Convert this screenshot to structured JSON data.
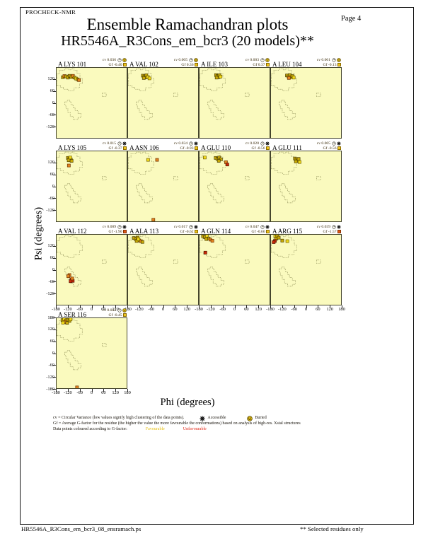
{
  "page": {
    "app": "PROCHECK-NMR",
    "page_label": "Page  4",
    "title": "Ensemble Ramachandran plots",
    "subtitle": "HR5546A_R3Cons_em_bcr3 (20 models)**",
    "footer_left": "HR5546A_R3Cons_em_bcr3_08_ensramach.ps",
    "footer_right": "** Selected residues only"
  },
  "axes": {
    "x_label": "Phi (degrees)",
    "y_label": "Psi (degrees)",
    "x_ticks_shared": [
      -180,
      -120,
      -60,
      0,
      60,
      120
    ],
    "x_ticks_full": [
      -180,
      -120,
      -60,
      0,
      60,
      120,
      180
    ],
    "y_ticks": [
      120,
      60,
      0,
      -60,
      -120
    ],
    "y_ticks_full": [
      180,
      120,
      60,
      0,
      -60,
      -120,
      -180
    ]
  },
  "labels": {
    "cv_prefix": "cv",
    "gf_prefix": "Gf"
  },
  "legend": {
    "line1": "cv = Circular Variance (low values signify high clustering of the data points).",
    "accessible": "Accessible",
    "buried": "Buried",
    "line2": "Gf = Average G-factor for the residue (the higher the value the more favourable the conformations) based on analysis of high-res. Xstal structures",
    "line3": "Data points coloured according to G-factor:",
    "favourable": "Favourable",
    "unfavourable": "Unfavourable"
  },
  "colors": {
    "plot_bg": "#fafabe",
    "region_outline": "#92925a",
    "favourable_chip": "#eec41c",
    "unfavourable_chip": "#e05818",
    "point_gold": "#c9a906",
    "point_yellow": "#f2da1a",
    "point_orange": "#e2821e",
    "point_red": "#cb2a08",
    "legend_favourable_text": "#e4bd0e",
    "legend_unfavourable_text": "#e02818"
  },
  "chart_data": {
    "type": "scatter",
    "x_label": "Phi (degrees)",
    "y_label": "Psi (degrees)",
    "x_range": [
      -180,
      180
    ],
    "y_range": [
      -180,
      180
    ],
    "models": 20,
    "plots": [
      {
        "residue": "A LYS 101",
        "cv": "0.036",
        "gf": "-0.40",
        "burial": "buried",
        "gf_status": "favourable",
        "points": [
          [
            -148,
            132,
            "g"
          ],
          [
            -140,
            138,
            "o"
          ],
          [
            -131,
            136,
            "g"
          ],
          [
            -122,
            130,
            "g"
          ],
          [
            -113,
            139,
            "g"
          ],
          [
            -104,
            133,
            "g"
          ],
          [
            -96,
            139,
            "o"
          ],
          [
            -88,
            130,
            "g"
          ],
          [
            -80,
            125,
            "y"
          ],
          [
            -72,
            121,
            "g"
          ],
          [
            -65,
            117,
            "o"
          ]
        ]
      },
      {
        "residue": "A VAL 102",
        "cv": "0.005",
        "gf": "0.36",
        "burial": "buried",
        "gf_status": "favourable",
        "points": [
          [
            -104,
            140,
            "g"
          ],
          [
            -96,
            136,
            "g"
          ],
          [
            -89,
            131,
            "g"
          ],
          [
            -99,
            128,
            "g"
          ],
          [
            -86,
            142,
            "g"
          ],
          [
            -78,
            133,
            "y"
          ],
          [
            -70,
            126,
            "y"
          ]
        ]
      },
      {
        "residue": "A ILE 103",
        "cv": "0.003",
        "gf": "0.37",
        "burial": "buried",
        "gf_status": "favourable",
        "points": [
          [
            -95,
            143,
            "g"
          ],
          [
            -88,
            138,
            "g"
          ],
          [
            -82,
            132,
            "g"
          ],
          [
            -92,
            130,
            "g"
          ],
          [
            -78,
            142,
            "g"
          ],
          [
            -72,
            135,
            "y"
          ]
        ]
      },
      {
        "residue": "A LEU 104",
        "cv": "0.001",
        "gf": "-0.13",
        "burial": "buried",
        "gf_status": "favourable",
        "points": [
          [
            -98,
            141,
            "g"
          ],
          [
            -90,
            136,
            "g"
          ],
          [
            -84,
            143,
            "g"
          ],
          [
            -77,
            132,
            "g"
          ],
          [
            -70,
            138,
            "g"
          ],
          [
            -88,
            128,
            "o"
          ],
          [
            -63,
            130,
            "y"
          ]
        ]
      },
      {
        "residue": "A LYS 105",
        "cv": "0.015",
        "gf": "-0.37",
        "burial": "accessible",
        "gf_status": "favourable",
        "points": [
          [
            -122,
            146,
            "g"
          ],
          [
            -114,
            142,
            "g"
          ],
          [
            -107,
            138,
            "g"
          ],
          [
            -118,
            134,
            "g"
          ],
          [
            -110,
            148,
            "y"
          ],
          [
            -103,
            131,
            "g"
          ],
          [
            -117,
            107,
            "o"
          ]
        ]
      },
      {
        "residue": "A ASN 106",
        "cv": "0.034",
        "gf": "-0.93",
        "burial": "accessible",
        "gf_status": "favourable",
        "points": [
          [
            -77,
            136,
            "y"
          ],
          [
            -31,
            136,
            "o"
          ],
          [
            -50,
            -172,
            "o"
          ]
        ]
      },
      {
        "residue": "A GLU 110",
        "cv": "0.020",
        "gf": "-0.56",
        "burial": "accessible",
        "gf_status": "favourable",
        "points": [
          [
            -153,
            148,
            "y"
          ],
          [
            -97,
            146,
            "g"
          ],
          [
            -88,
            141,
            "g"
          ],
          [
            -79,
            148,
            "g"
          ],
          [
            -70,
            139,
            "g"
          ],
          [
            -81,
            131,
            "g"
          ],
          [
            -44,
            124,
            "o"
          ],
          [
            -37,
            112,
            "r"
          ]
        ]
      },
      {
        "residue": "A GLU 111",
        "cv": "0.005",
        "gf": "-0.56",
        "burial": "accessible",
        "gf_status": "favourable",
        "points": [
          [
            -57,
            143,
            "g"
          ],
          [
            -49,
            138,
            "g"
          ],
          [
            -42,
            132,
            "g"
          ],
          [
            -52,
            128,
            "g"
          ],
          [
            -38,
            141,
            "g"
          ],
          [
            -33,
            125,
            "y"
          ]
        ]
      },
      {
        "residue": "A VAL 112",
        "cv": "0.009",
        "gf": "-1.90",
        "burial": "accessible",
        "gf_status": "unfavourable",
        "points": [
          [
            -114,
            -27,
            "o"
          ],
          [
            -120,
            -33,
            "o"
          ],
          [
            -104,
            -50,
            "r"
          ],
          [
            -97,
            -57,
            "r"
          ],
          [
            -108,
            -59,
            "r"
          ],
          [
            -100,
            -45,
            "o"
          ]
        ]
      },
      {
        "residue": "A ALA 113",
        "cv": "0.017",
        "gf": "-0.62",
        "burial": "accessible",
        "gf_status": "favourable",
        "points": [
          [
            -150,
            163,
            "g"
          ],
          [
            -141,
            158,
            "g"
          ],
          [
            -131,
            165,
            "g"
          ],
          [
            -123,
            151,
            "g"
          ],
          [
            -136,
            148,
            "g"
          ],
          [
            -114,
            147,
            "o"
          ],
          [
            -127,
            157,
            "y"
          ],
          [
            -106,
            143,
            "g"
          ]
        ]
      },
      {
        "residue": "A GLN 114",
        "cv": "0.047",
        "gf": "-0.66",
        "burial": "accessible",
        "gf_status": "favourable",
        "points": [
          [
            -162,
            172,
            "g"
          ],
          [
            -152,
            167,
            "g"
          ],
          [
            -142,
            174,
            "y"
          ],
          [
            -133,
            161,
            "g"
          ],
          [
            -145,
            158,
            "g"
          ],
          [
            -124,
            155,
            "o"
          ],
          [
            -114,
            149,
            "o"
          ],
          [
            -150,
            88,
            "r"
          ]
        ]
      },
      {
        "residue": "A ARG 115",
        "cv": "0.039",
        "gf": "-1.57",
        "burial": "accessible",
        "gf_status": "unfavourable",
        "points": [
          [
            -158,
            172,
            "y"
          ],
          [
            -148,
            174,
            "g"
          ],
          [
            -152,
            160,
            "g"
          ],
          [
            -160,
            148,
            "r"
          ],
          [
            -166,
            142,
            "r"
          ],
          [
            -140,
            165,
            "g"
          ],
          [
            -122,
            150,
            "g"
          ],
          [
            -96,
            147,
            "y"
          ]
        ]
      },
      {
        "residue": "A SER 116",
        "cv": "0.043",
        "gf": "-0.45",
        "burial": "buried",
        "gf_status": "favourable",
        "points": [
          [
            -150,
            170,
            "g"
          ],
          [
            -141,
            174,
            "y"
          ],
          [
            -132,
            168,
            "g"
          ],
          [
            -123,
            172,
            "g"
          ],
          [
            -114,
            166,
            "g"
          ],
          [
            -137,
            160,
            "o"
          ],
          [
            -126,
            156,
            "g"
          ],
          [
            -147,
            157,
            "y"
          ],
          [
            -108,
            174,
            "y"
          ],
          [
            -75,
            -176,
            "o"
          ]
        ]
      }
    ]
  }
}
